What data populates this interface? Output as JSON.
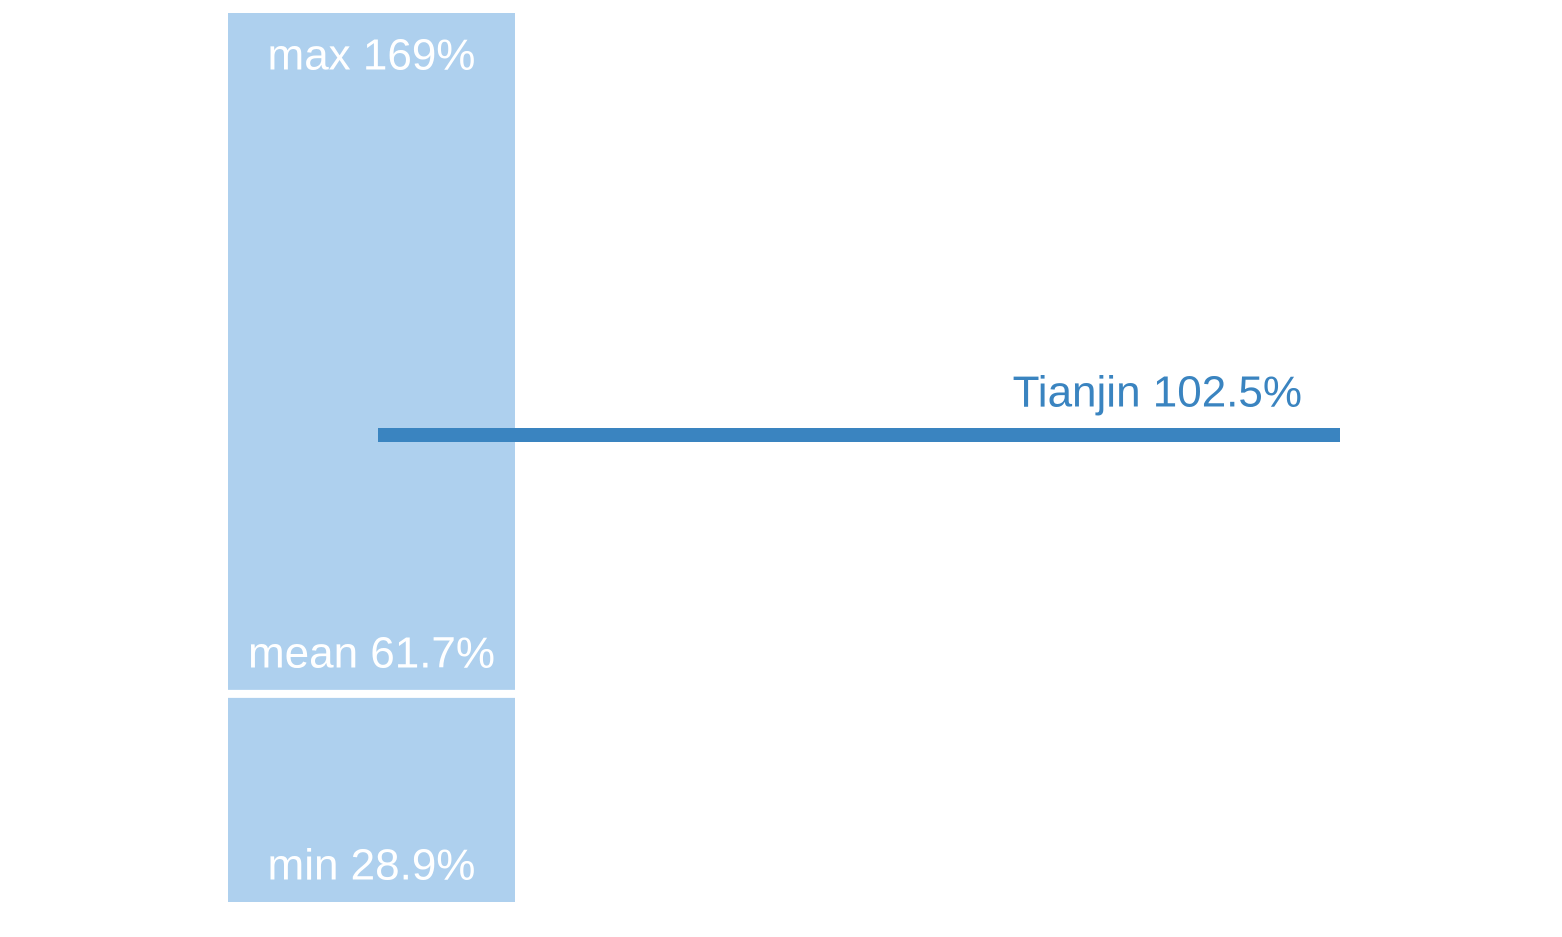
{
  "chart_data": {
    "type": "range",
    "color": "#aed0ee",
    "highlight_color": "#3a84c0",
    "max": 169,
    "max_label": "max 169%",
    "mean": 61.7,
    "mean_label": "mean 61.7%",
    "min": 28.9,
    "min_label": "min 28.9%",
    "highlight": 102.5,
    "highlight_label": "Tianjin 102.5%"
  }
}
